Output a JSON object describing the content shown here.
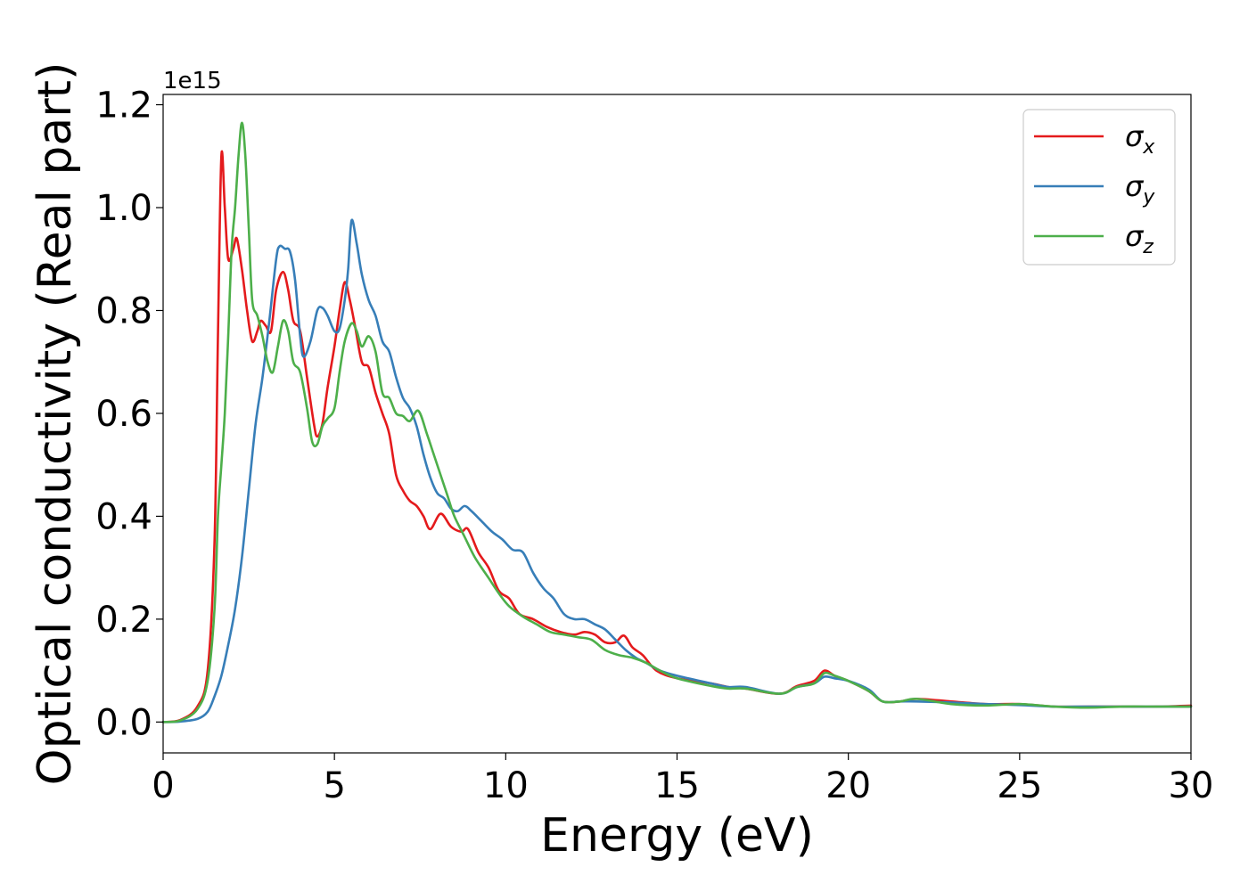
{
  "chart_data": {
    "type": "line",
    "title": "",
    "xlabel": "Energy (eV)",
    "ylabel": "Optical conductivity (Real part)",
    "y_offset_label": "1e15",
    "xlim": [
      0,
      30
    ],
    "ylim": [
      -0.06,
      1.22
    ],
    "x_ticks": [
      0,
      5,
      10,
      15,
      20,
      25,
      30
    ],
    "y_ticks": [
      0.0,
      0.2,
      0.4,
      0.6,
      0.8,
      1.0,
      1.2
    ],
    "x_tick_labels": [
      "0",
      "5",
      "10",
      "15",
      "20",
      "25",
      "30"
    ],
    "y_tick_labels": [
      "0.0",
      "0.2",
      "0.4",
      "0.6",
      "0.8",
      "1.0",
      "1.2"
    ],
    "grid": false,
    "legend_position": "top-right",
    "series": [
      {
        "name": "σx",
        "symbol": "σ",
        "subscript": "x",
        "color": "#e41a1c",
        "points": [
          [
            0,
            0
          ],
          [
            0.5,
            0.004
          ],
          [
            1.0,
            0.03
          ],
          [
            1.3,
            0.1
          ],
          [
            1.5,
            0.35
          ],
          [
            1.6,
            0.75
          ],
          [
            1.7,
            1.1
          ],
          [
            1.8,
            1.0
          ],
          [
            1.9,
            0.9
          ],
          [
            2.05,
            0.92
          ],
          [
            2.15,
            0.94
          ],
          [
            2.3,
            0.88
          ],
          [
            2.45,
            0.8
          ],
          [
            2.6,
            0.74
          ],
          [
            2.75,
            0.76
          ],
          [
            2.85,
            0.78
          ],
          [
            3.0,
            0.77
          ],
          [
            3.15,
            0.76
          ],
          [
            3.3,
            0.84
          ],
          [
            3.5,
            0.875
          ],
          [
            3.65,
            0.84
          ],
          [
            3.8,
            0.78
          ],
          [
            4.0,
            0.76
          ],
          [
            4.2,
            0.67
          ],
          [
            4.4,
            0.58
          ],
          [
            4.5,
            0.555
          ],
          [
            4.65,
            0.58
          ],
          [
            4.8,
            0.65
          ],
          [
            5.0,
            0.73
          ],
          [
            5.15,
            0.8
          ],
          [
            5.3,
            0.855
          ],
          [
            5.45,
            0.82
          ],
          [
            5.6,
            0.77
          ],
          [
            5.8,
            0.7
          ],
          [
            6.0,
            0.69
          ],
          [
            6.2,
            0.64
          ],
          [
            6.4,
            0.6
          ],
          [
            6.6,
            0.56
          ],
          [
            6.8,
            0.48
          ],
          [
            7.0,
            0.45
          ],
          [
            7.2,
            0.43
          ],
          [
            7.4,
            0.42
          ],
          [
            7.6,
            0.4
          ],
          [
            7.8,
            0.375
          ],
          [
            8.1,
            0.405
          ],
          [
            8.4,
            0.38
          ],
          [
            8.7,
            0.37
          ],
          [
            8.9,
            0.375
          ],
          [
            9.2,
            0.33
          ],
          [
            9.5,
            0.3
          ],
          [
            9.8,
            0.255
          ],
          [
            10.1,
            0.24
          ],
          [
            10.4,
            0.21
          ],
          [
            10.8,
            0.2
          ],
          [
            11.2,
            0.185
          ],
          [
            11.6,
            0.175
          ],
          [
            12.0,
            0.17
          ],
          [
            12.3,
            0.175
          ],
          [
            12.6,
            0.17
          ],
          [
            12.9,
            0.155
          ],
          [
            13.2,
            0.155
          ],
          [
            13.45,
            0.168
          ],
          [
            13.7,
            0.145
          ],
          [
            14.0,
            0.13
          ],
          [
            14.4,
            0.1
          ],
          [
            15.0,
            0.085
          ],
          [
            16.0,
            0.075
          ],
          [
            16.5,
            0.068
          ],
          [
            17.0,
            0.065
          ],
          [
            18.0,
            0.055
          ],
          [
            18.5,
            0.07
          ],
          [
            19.0,
            0.08
          ],
          [
            19.3,
            0.1
          ],
          [
            19.6,
            0.09
          ],
          [
            20.0,
            0.08
          ],
          [
            20.6,
            0.06
          ],
          [
            21.0,
            0.04
          ],
          [
            21.5,
            0.04
          ],
          [
            22.0,
            0.045
          ],
          [
            23.0,
            0.04
          ],
          [
            24.0,
            0.035
          ],
          [
            25.0,
            0.035
          ],
          [
            26.0,
            0.03
          ],
          [
            27.0,
            0.03
          ],
          [
            28.0,
            0.03
          ],
          [
            29.0,
            0.03
          ],
          [
            30.0,
            0.032
          ]
        ]
      },
      {
        "name": "σy",
        "symbol": "σ",
        "subscript": "y",
        "color": "#377eb8",
        "points": [
          [
            0,
            0
          ],
          [
            0.5,
            0.001
          ],
          [
            1.0,
            0.006
          ],
          [
            1.3,
            0.02
          ],
          [
            1.5,
            0.05
          ],
          [
            1.7,
            0.09
          ],
          [
            1.9,
            0.15
          ],
          [
            2.1,
            0.22
          ],
          [
            2.3,
            0.32
          ],
          [
            2.5,
            0.45
          ],
          [
            2.7,
            0.58
          ],
          [
            2.9,
            0.67
          ],
          [
            3.1,
            0.78
          ],
          [
            3.3,
            0.9
          ],
          [
            3.4,
            0.925
          ],
          [
            3.55,
            0.92
          ],
          [
            3.7,
            0.915
          ],
          [
            3.85,
            0.86
          ],
          [
            4.0,
            0.75
          ],
          [
            4.1,
            0.71
          ],
          [
            4.3,
            0.74
          ],
          [
            4.5,
            0.8
          ],
          [
            4.65,
            0.805
          ],
          [
            4.8,
            0.79
          ],
          [
            5.0,
            0.76
          ],
          [
            5.15,
            0.765
          ],
          [
            5.3,
            0.82
          ],
          [
            5.4,
            0.88
          ],
          [
            5.5,
            0.975
          ],
          [
            5.65,
            0.93
          ],
          [
            5.8,
            0.87
          ],
          [
            6.0,
            0.82
          ],
          [
            6.2,
            0.79
          ],
          [
            6.4,
            0.74
          ],
          [
            6.6,
            0.72
          ],
          [
            6.8,
            0.67
          ],
          [
            7.0,
            0.63
          ],
          [
            7.2,
            0.61
          ],
          [
            7.4,
            0.575
          ],
          [
            7.6,
            0.52
          ],
          [
            7.8,
            0.475
          ],
          [
            8.0,
            0.445
          ],
          [
            8.2,
            0.435
          ],
          [
            8.4,
            0.415
          ],
          [
            8.6,
            0.41
          ],
          [
            8.8,
            0.42
          ],
          [
            9.0,
            0.41
          ],
          [
            9.3,
            0.39
          ],
          [
            9.6,
            0.37
          ],
          [
            9.9,
            0.355
          ],
          [
            10.2,
            0.335
          ],
          [
            10.5,
            0.33
          ],
          [
            10.8,
            0.29
          ],
          [
            11.1,
            0.26
          ],
          [
            11.4,
            0.24
          ],
          [
            11.7,
            0.21
          ],
          [
            12.0,
            0.2
          ],
          [
            12.3,
            0.2
          ],
          [
            12.6,
            0.19
          ],
          [
            12.9,
            0.18
          ],
          [
            13.2,
            0.16
          ],
          [
            13.5,
            0.14
          ],
          [
            13.8,
            0.125
          ],
          [
            14.1,
            0.115
          ],
          [
            14.5,
            0.1
          ],
          [
            15.0,
            0.09
          ],
          [
            16.0,
            0.075
          ],
          [
            16.5,
            0.068
          ],
          [
            17.0,
            0.068
          ],
          [
            18.0,
            0.055
          ],
          [
            18.5,
            0.068
          ],
          [
            19.0,
            0.075
          ],
          [
            19.3,
            0.088
          ],
          [
            19.6,
            0.085
          ],
          [
            20.0,
            0.08
          ],
          [
            20.6,
            0.063
          ],
          [
            21.0,
            0.04
          ],
          [
            21.5,
            0.04
          ],
          [
            22.0,
            0.04
          ],
          [
            23.0,
            0.038
          ],
          [
            24.0,
            0.035
          ],
          [
            25.0,
            0.033
          ],
          [
            26.0,
            0.03
          ],
          [
            27.0,
            0.03
          ],
          [
            28.0,
            0.03
          ],
          [
            29.0,
            0.03
          ],
          [
            30.0,
            0.03
          ]
        ]
      },
      {
        "name": "σz",
        "symbol": "σ",
        "subscript": "z",
        "color": "#4daf4a",
        "points": [
          [
            0,
            0
          ],
          [
            0.5,
            0.003
          ],
          [
            1.0,
            0.025
          ],
          [
            1.3,
            0.08
          ],
          [
            1.5,
            0.22
          ],
          [
            1.6,
            0.4
          ],
          [
            1.7,
            0.5
          ],
          [
            1.8,
            0.6
          ],
          [
            1.9,
            0.75
          ],
          [
            2.0,
            0.92
          ],
          [
            2.1,
            1.0
          ],
          [
            2.2,
            1.1
          ],
          [
            2.3,
            1.165
          ],
          [
            2.4,
            1.1
          ],
          [
            2.5,
            0.96
          ],
          [
            2.6,
            0.82
          ],
          [
            2.75,
            0.79
          ],
          [
            2.9,
            0.75
          ],
          [
            3.05,
            0.7
          ],
          [
            3.2,
            0.68
          ],
          [
            3.35,
            0.73
          ],
          [
            3.5,
            0.78
          ],
          [
            3.65,
            0.76
          ],
          [
            3.8,
            0.7
          ],
          [
            4.0,
            0.68
          ],
          [
            4.2,
            0.61
          ],
          [
            4.35,
            0.545
          ],
          [
            4.5,
            0.54
          ],
          [
            4.65,
            0.575
          ],
          [
            4.8,
            0.59
          ],
          [
            5.0,
            0.61
          ],
          [
            5.15,
            0.68
          ],
          [
            5.3,
            0.74
          ],
          [
            5.5,
            0.775
          ],
          [
            5.65,
            0.76
          ],
          [
            5.8,
            0.73
          ],
          [
            6.0,
            0.75
          ],
          [
            6.2,
            0.72
          ],
          [
            6.4,
            0.64
          ],
          [
            6.6,
            0.63
          ],
          [
            6.8,
            0.6
          ],
          [
            7.0,
            0.595
          ],
          [
            7.2,
            0.585
          ],
          [
            7.45,
            0.605
          ],
          [
            7.7,
            0.56
          ],
          [
            7.9,
            0.52
          ],
          [
            8.1,
            0.48
          ],
          [
            8.3,
            0.44
          ],
          [
            8.5,
            0.4
          ],
          [
            8.8,
            0.36
          ],
          [
            9.1,
            0.32
          ],
          [
            9.5,
            0.28
          ],
          [
            9.8,
            0.25
          ],
          [
            10.1,
            0.225
          ],
          [
            10.5,
            0.205
          ],
          [
            10.9,
            0.19
          ],
          [
            11.3,
            0.175
          ],
          [
            11.7,
            0.17
          ],
          [
            12.1,
            0.165
          ],
          [
            12.5,
            0.16
          ],
          [
            12.9,
            0.14
          ],
          [
            13.3,
            0.13
          ],
          [
            13.7,
            0.125
          ],
          [
            14.1,
            0.115
          ],
          [
            14.5,
            0.1
          ],
          [
            15.0,
            0.085
          ],
          [
            16.0,
            0.07
          ],
          [
            16.5,
            0.065
          ],
          [
            17.0,
            0.065
          ],
          [
            18.0,
            0.055
          ],
          [
            18.5,
            0.068
          ],
          [
            19.0,
            0.075
          ],
          [
            19.3,
            0.095
          ],
          [
            19.6,
            0.09
          ],
          [
            20.0,
            0.08
          ],
          [
            20.6,
            0.06
          ],
          [
            21.0,
            0.04
          ],
          [
            21.5,
            0.04
          ],
          [
            22.0,
            0.045
          ],
          [
            23.0,
            0.035
          ],
          [
            24.0,
            0.032
          ],
          [
            25.0,
            0.035
          ],
          [
            26.0,
            0.03
          ],
          [
            27.0,
            0.028
          ],
          [
            28.0,
            0.03
          ],
          [
            29.0,
            0.03
          ],
          [
            30.0,
            0.03
          ]
        ]
      }
    ]
  }
}
